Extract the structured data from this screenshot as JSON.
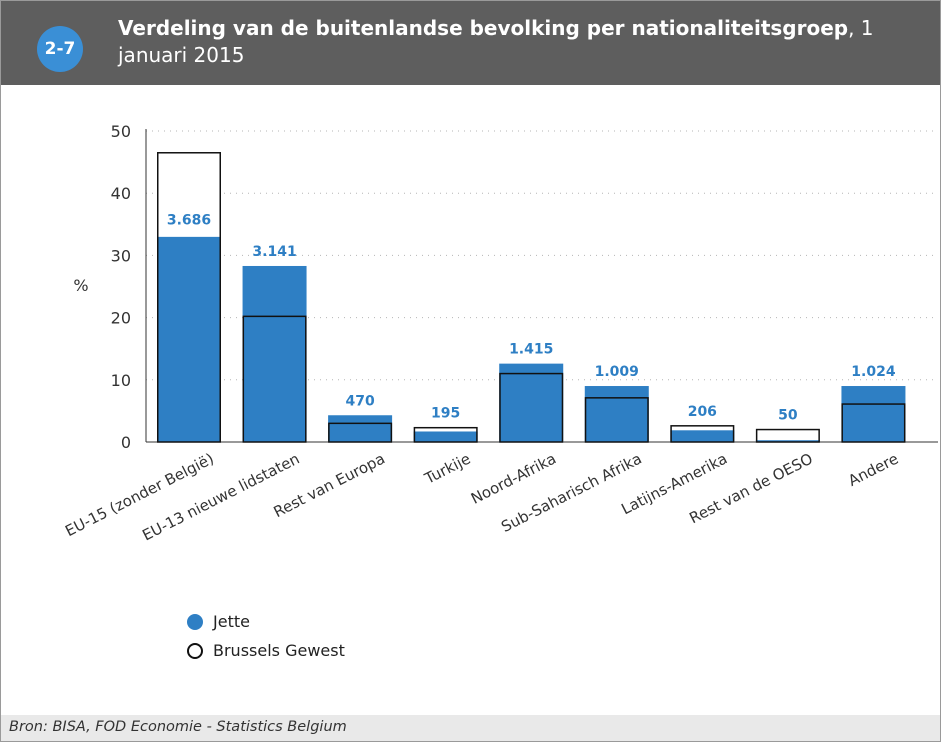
{
  "header": {
    "badge": "2-7",
    "title_bold": "Verdeling van de buitenlandse bevolking per nationaliteitsgroep",
    "title_rest": ", 1 januari 2015"
  },
  "footer": {
    "source": "Bron: BISA, FOD Economie - Statistics Belgium"
  },
  "colors": {
    "header_bg": "#5e5e5e",
    "badge": "#3a8fd6",
    "bar_fill": "#2e7fc4",
    "label": "#2e7fc4",
    "footer_bg": "#e9e9e9"
  },
  "chart_data": {
    "type": "bar",
    "ylabel": "%",
    "ylim": [
      0,
      50
    ],
    "yticks": [
      0,
      10,
      20,
      30,
      40,
      50
    ],
    "grid": true,
    "categories": [
      "EU-15 (zonder België)",
      "EU-13 nieuwe lidstaten",
      "Rest van Europa",
      "Turkije",
      "Noord-Afrika",
      "Sub-Saharisch Afrika",
      "Latijns-Amerika",
      "Rest van de OESO",
      "Andere"
    ],
    "series": [
      {
        "name": "Jette",
        "style": "filled",
        "values": [
          33,
          28.3,
          4.3,
          1.7,
          12.6,
          9,
          1.9,
          0.3,
          9
        ]
      },
      {
        "name": "Brussels Gewest",
        "style": "outline",
        "values": [
          46.5,
          20.2,
          3,
          2.3,
          11,
          7.1,
          2.6,
          2,
          6.1
        ]
      }
    ],
    "data_labels": [
      "3.686",
      "3.141",
      "470",
      "195",
      "1.415",
      "1.009",
      "206",
      "50",
      "1.024"
    ],
    "legend_position": "bottom-left"
  }
}
